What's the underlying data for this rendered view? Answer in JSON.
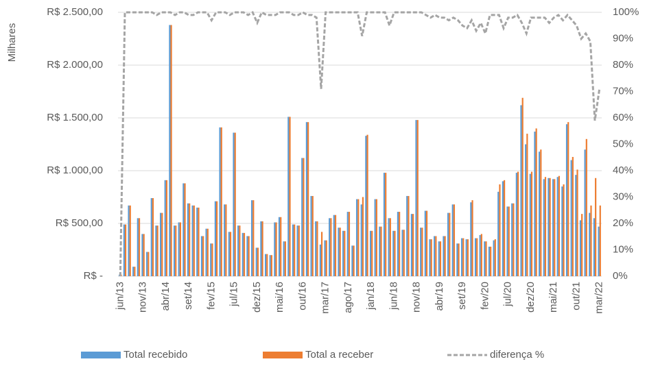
{
  "chart_data": {
    "type": "bar",
    "ylabel": "Milhares",
    "categories": [
      "jun/13",
      null,
      null,
      null,
      null,
      "nov/13",
      null,
      null,
      null,
      null,
      "abr/14",
      null,
      null,
      null,
      null,
      "set/14",
      null,
      null,
      null,
      null,
      "fev/15",
      null,
      null,
      null,
      null,
      "jul/15",
      null,
      null,
      null,
      null,
      "dez/15",
      null,
      null,
      null,
      null,
      "mai/16",
      null,
      null,
      null,
      null,
      "out/16",
      null,
      null,
      null,
      null,
      "mar/17",
      null,
      null,
      null,
      null,
      "ago/17",
      null,
      null,
      null,
      null,
      "jan/18",
      null,
      null,
      null,
      null,
      "jun/18",
      null,
      null,
      null,
      null,
      "nov/18",
      null,
      null,
      null,
      null,
      "abr/19",
      null,
      null,
      null,
      null,
      "set/19",
      null,
      null,
      null,
      null,
      "fev/20",
      null,
      null,
      null,
      null,
      "jul/20",
      null,
      null,
      null,
      null,
      "dez/20",
      null,
      null,
      null,
      null,
      "mai/21",
      null,
      null,
      null,
      null,
      "out/21",
      null,
      null,
      null,
      null,
      "mar/22"
    ],
    "series": [
      {
        "name": "Total recebido",
        "color": "#5b9bd5",
        "values": [
          15,
          490,
          670,
          90,
          550,
          400,
          230,
          740,
          480,
          600,
          910,
          2380,
          480,
          510,
          880,
          690,
          670,
          650,
          380,
          450,
          310,
          710,
          1410,
          680,
          420,
          1360,
          480,
          410,
          380,
          720,
          270,
          520,
          210,
          200,
          510,
          560,
          330,
          1510,
          490,
          480,
          1120,
          1460,
          760,
          520,
          300,
          340,
          550,
          580,
          460,
          430,
          610,
          290,
          730,
          680,
          1330,
          430,
          730,
          470,
          980,
          550,
          430,
          610,
          440,
          760,
          590,
          1480,
          460,
          620,
          350,
          380,
          330,
          380,
          600,
          680,
          310,
          360,
          350,
          700,
          360,
          390,
          330,
          280,
          340,
          800,
          900,
          660,
          690,
          980,
          1620,
          1250,
          970,
          1370,
          1180,
          920,
          930,
          920,
          940,
          850,
          1440,
          1100,
          960,
          530,
          1200,
          600,
          550,
          470
        ]
      },
      {
        "name": "Total a receber",
        "color": "#ed7d31",
        "values": [
          15,
          490,
          670,
          90,
          550,
          400,
          230,
          740,
          480,
          600,
          910,
          2380,
          480,
          510,
          880,
          690,
          670,
          650,
          380,
          450,
          310,
          710,
          1410,
          680,
          420,
          1360,
          480,
          410,
          380,
          720,
          270,
          520,
          210,
          200,
          510,
          560,
          330,
          1510,
          490,
          480,
          1120,
          1460,
          760,
          520,
          420,
          340,
          550,
          580,
          460,
          430,
          610,
          290,
          730,
          750,
          1340,
          430,
          730,
          470,
          980,
          550,
          430,
          610,
          440,
          760,
          590,
          1480,
          460,
          620,
          350,
          380,
          330,
          380,
          600,
          680,
          310,
          360,
          350,
          720,
          360,
          400,
          330,
          280,
          350,
          870,
          910,
          660,
          690,
          990,
          1690,
          1350,
          990,
          1400,
          1200,
          940,
          930,
          920,
          950,
          870,
          1460,
          1130,
          1010,
          590,
          1300,
          670,
          930,
          670
        ]
      },
      {
        "name": "diferença %",
        "color": "#a5a5a5",
        "type": "line",
        "axis": "y2",
        "dashed": true,
        "values": [
          0,
          100,
          100,
          100,
          100,
          100,
          100,
          100,
          99,
          100,
          100,
          100,
          99,
          100,
          100,
          99,
          99,
          100,
          100,
          100,
          97,
          100,
          100,
          100,
          99,
          100,
          100,
          100,
          99,
          100,
          96,
          100,
          99,
          99,
          99,
          100,
          100,
          100,
          99,
          99,
          100,
          99,
          99,
          98,
          71,
          100,
          100,
          100,
          100,
          100,
          100,
          100,
          100,
          91,
          100,
          100,
          100,
          100,
          100,
          95,
          100,
          100,
          100,
          100,
          100,
          100,
          100,
          99,
          98,
          99,
          98,
          98,
          97,
          98,
          97,
          95,
          94,
          97,
          93,
          96,
          92,
          99,
          99,
          99,
          94,
          98,
          98,
          99,
          96,
          92,
          98,
          98,
          98,
          98,
          96,
          98,
          99,
          97,
          99,
          97,
          95,
          90,
          92,
          89,
          59,
          71
        ]
      }
    ],
    "ylim": [
      0,
      2500
    ],
    "yticks": [
      {
        "value": 0,
        "label": "R$ -"
      },
      {
        "value": 500,
        "label": "R$ 500,00"
      },
      {
        "value": 1000,
        "label": "R$ 1.000,00"
      },
      {
        "value": 1500,
        "label": "R$ 1.500,00"
      },
      {
        "value": 2000,
        "label": "R$ 2.000,00"
      },
      {
        "value": 2500,
        "label": "R$ 2.500,00"
      }
    ],
    "y2lim": [
      0,
      100
    ],
    "y2ticks": [
      {
        "value": 0,
        "label": "0%"
      },
      {
        "value": 10,
        "label": "10%"
      },
      {
        "value": 20,
        "label": "20%"
      },
      {
        "value": 30,
        "label": "30%"
      },
      {
        "value": 40,
        "label": "40%"
      },
      {
        "value": 50,
        "label": "50%"
      },
      {
        "value": 60,
        "label": "60%"
      },
      {
        "value": 70,
        "label": "70%"
      },
      {
        "value": 80,
        "label": "80%"
      },
      {
        "value": 90,
        "label": "90%"
      },
      {
        "value": 100,
        "label": "100%"
      }
    ],
    "grid": true,
    "legend": "bottom"
  }
}
